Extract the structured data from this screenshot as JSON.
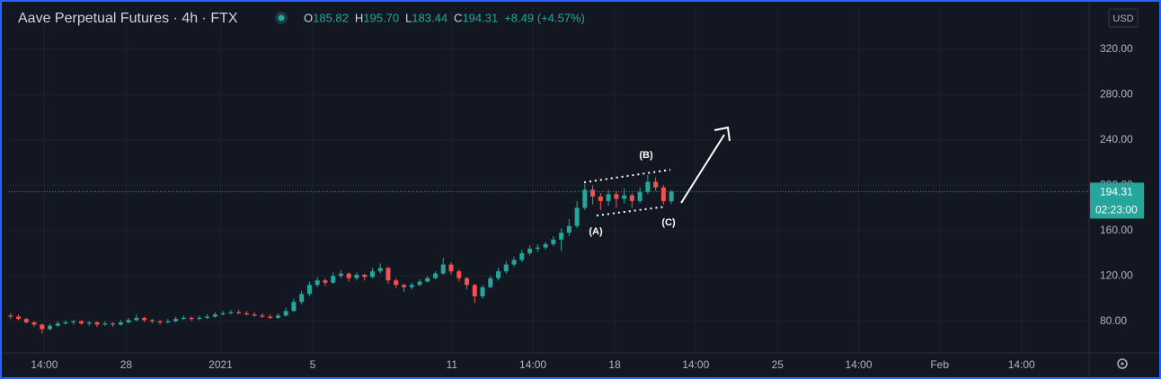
{
  "chart_data": {
    "type": "candlestick",
    "title": "Aave Perpetual Futures · 4h · FTX",
    "ohlc_labels": [
      "O",
      "H",
      "L",
      "C"
    ],
    "ohlc_values": [
      "185.82",
      "195.70",
      "183.44",
      "194.31"
    ],
    "change": "+8.49 (+4.57%)",
    "currency": "USD",
    "last_price_label": "194.31",
    "countdown": "02:23:00",
    "annotations": [
      "(A)",
      "(B)",
      "(C)"
    ],
    "up_color": "#26a69a",
    "down_color": "#ef5350",
    "xlim": [
      -0.2,
      137.1
    ],
    "xticks": [
      {
        "value": 4.3,
        "label": "14:00"
      },
      {
        "value": 14.7,
        "label": "28"
      },
      {
        "value": 26.7,
        "label": "2021"
      },
      {
        "value": 38.4,
        "label": "5"
      },
      {
        "value": 56.1,
        "label": "11"
      },
      {
        "value": 66.4,
        "label": "14:00"
      },
      {
        "value": 76.8,
        "label": "18"
      },
      {
        "value": 87.1,
        "label": "14:00"
      },
      {
        "value": 97.5,
        "label": "25"
      },
      {
        "value": 107.8,
        "label": "14:00"
      },
      {
        "value": 118.1,
        "label": "Feb"
      },
      {
        "value": 128.5,
        "label": "14:00"
      }
    ],
    "ylim": [
      52,
      357
    ],
    "yticks": [
      {
        "value": 80,
        "label": "80.00"
      },
      {
        "value": 120,
        "label": "120.00"
      },
      {
        "value": 160,
        "label": "160.00"
      },
      {
        "value": 200,
        "label": "200.00"
      },
      {
        "value": 240,
        "label": "240.00"
      },
      {
        "value": 280,
        "label": "280.00"
      },
      {
        "value": 320,
        "label": "320.00"
      }
    ],
    "candles": [
      [
        85,
        87,
        82,
        84
      ],
      [
        84,
        86,
        81,
        82
      ],
      [
        82,
        83,
        78,
        79
      ],
      [
        79,
        80,
        75,
        77
      ],
      [
        77,
        78,
        69,
        73
      ],
      [
        73,
        78,
        72,
        76
      ],
      [
        76,
        80,
        75,
        78
      ],
      [
        78,
        81,
        77,
        79
      ],
      [
        79,
        81,
        77,
        80
      ],
      [
        80,
        81,
        77,
        78
      ],
      [
        78,
        80,
        76,
        79
      ],
      [
        79,
        80,
        75,
        77
      ],
      [
        77,
        80,
        76,
        78
      ],
      [
        78,
        79,
        75,
        77
      ],
      [
        77,
        81,
        76,
        79
      ],
      [
        79,
        83,
        78,
        81
      ],
      [
        81,
        86,
        80,
        83
      ],
      [
        83,
        84,
        79,
        81
      ],
      [
        81,
        82,
        78,
        80
      ],
      [
        80,
        81,
        77,
        79
      ],
      [
        79,
        82,
        78,
        80
      ],
      [
        80,
        84,
        79,
        82
      ],
      [
        82,
        85,
        81,
        83
      ],
      [
        83,
        84,
        80,
        82
      ],
      [
        82,
        85,
        81,
        83
      ],
      [
        83,
        86,
        82,
        84
      ],
      [
        84,
        88,
        83,
        86
      ],
      [
        86,
        89,
        85,
        87
      ],
      [
        87,
        90,
        86,
        88
      ],
      [
        88,
        90,
        86,
        87
      ],
      [
        87,
        89,
        85,
        86
      ],
      [
        86,
        88,
        84,
        85
      ],
      [
        85,
        87,
        83,
        84
      ],
      [
        84,
        86,
        82,
        83
      ],
      [
        83,
        87,
        82,
        85
      ],
      [
        85,
        92,
        84,
        89
      ],
      [
        89,
        100,
        88,
        97
      ],
      [
        97,
        107,
        95,
        104
      ],
      [
        104,
        115,
        102,
        112
      ],
      [
        112,
        119,
        110,
        116
      ],
      [
        116,
        118,
        111,
        114
      ],
      [
        114,
        123,
        113,
        120
      ],
      [
        120,
        125,
        118,
        122
      ],
      [
        122,
        123,
        115,
        118
      ],
      [
        118,
        123,
        116,
        121
      ],
      [
        121,
        122,
        116,
        119
      ],
      [
        119,
        127,
        118,
        124
      ],
      [
        124,
        131,
        122,
        127
      ],
      [
        127,
        128,
        113,
        116
      ],
      [
        116,
        118,
        109,
        112
      ],
      [
        112,
        113,
        106,
        110
      ],
      [
        110,
        114,
        108,
        112
      ],
      [
        112,
        117,
        111,
        115
      ],
      [
        115,
        120,
        114,
        118
      ],
      [
        118,
        124,
        117,
        122
      ],
      [
        122,
        136,
        121,
        130
      ],
      [
        130,
        132,
        121,
        124
      ],
      [
        124,
        126,
        115,
        118
      ],
      [
        118,
        119,
        108,
        112
      ],
      [
        112,
        113,
        96,
        102
      ],
      [
        102,
        112,
        100,
        110
      ],
      [
        110,
        120,
        109,
        118
      ],
      [
        118,
        127,
        116,
        124
      ],
      [
        124,
        133,
        122,
        130
      ],
      [
        130,
        137,
        128,
        134
      ],
      [
        134,
        143,
        132,
        140
      ],
      [
        140,
        147,
        138,
        144
      ],
      [
        144,
        148,
        141,
        145
      ],
      [
        145,
        150,
        143,
        148
      ],
      [
        148,
        155,
        146,
        152
      ],
      [
        152,
        162,
        142,
        158
      ],
      [
        158,
        170,
        155,
        164
      ],
      [
        164,
        186,
        162,
        180
      ],
      [
        180,
        201,
        178,
        196
      ],
      [
        196,
        200,
        183,
        190
      ],
      [
        190,
        193,
        178,
        186
      ],
      [
        186,
        196,
        182,
        192
      ],
      [
        192,
        195,
        180,
        188
      ],
      [
        188,
        197,
        184,
        191
      ],
      [
        191,
        193,
        180,
        186
      ],
      [
        186,
        198,
        184,
        194
      ],
      [
        194,
        209,
        192,
        203
      ],
      [
        203,
        207,
        195,
        198
      ],
      [
        198,
        200,
        183,
        186
      ],
      [
        185.82,
        195.7,
        183.44,
        194.31
      ]
    ]
  }
}
